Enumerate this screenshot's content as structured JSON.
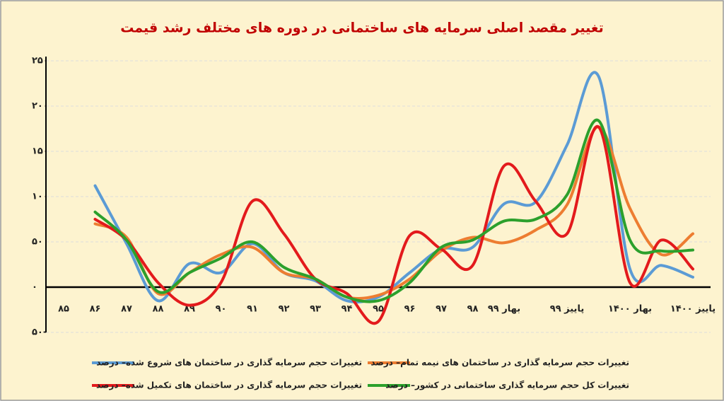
{
  "chart_data": {
    "type": "line",
    "title": "تغییر مقصد اصلی سرمایه های ساختمانی در دوره های مختلف رشد قیمت",
    "categories": [
      "۸۵",
      "۸۶",
      "۸۷",
      "۸۸",
      "۸۹",
      "۹۰",
      "۹۱",
      "۹۲",
      "۹۳",
      "۹۴",
      "۹۵",
      "۹۶",
      "۹۷",
      "۹۸",
      "بهار ۹۹",
      null,
      "پاییز ۹۹",
      null,
      "بهار ۱۴۰۰",
      null,
      "پاییز ۱۴۰۰"
    ],
    "series": [
      {
        "name": "تغییرات حجم سرمایه گذاری در ساختمان های شروع شده– درصد",
        "color": "#5b9bd5",
        "values": [
          null,
          112,
          48,
          -15,
          26,
          16,
          48,
          16,
          7,
          -15,
          -11,
          16,
          42,
          44,
          92,
          94,
          157,
          233,
          20,
          24,
          11
        ]
      },
      {
        "name": "تغییرات حجم سرمایه گذاری در ساختمان های نیمه تمام– درصد",
        "color": "#ed7d31",
        "values": [
          null,
          70,
          55,
          -7,
          16,
          36,
          44,
          16,
          9,
          -11,
          -9,
          9,
          40,
          55,
          49,
          63,
          91,
          177,
          87,
          36,
          59
        ]
      },
      {
        "name": "تغییرات حجم سرمایه گذاری در ساختمان های تکمیل شده– درصد",
        "color": "#e31a1c",
        "values": [
          null,
          75,
          52,
          5,
          -20,
          5,
          95,
          59,
          9,
          -7,
          -38,
          57,
          42,
          24,
          134,
          95,
          59,
          177,
          5,
          52,
          20
        ]
      },
      {
        "name": "تغییرات کل حجم سرمایه گذاری ساختمانی در کشور– درصد",
        "color": "#2ca02c",
        "values": [
          null,
          83,
          52,
          -5,
          16,
          32,
          50,
          22,
          9,
          -11,
          -15,
          5,
          44,
          52,
          73,
          75,
          102,
          184,
          52,
          40,
          41
        ]
      }
    ],
    "ylim": [
      -50,
      250
    ],
    "yticks": [
      {
        "value": -50,
        "label": "-۵۰"
      },
      {
        "value": 0,
        "label": "۰"
      },
      {
        "value": 50,
        "label": "۵۰"
      },
      {
        "value": 100,
        "label": "۱۰۰"
      },
      {
        "value": 150,
        "label": "۱۵۰"
      },
      {
        "value": 200,
        "label": "۲۰۰"
      },
      {
        "value": 250,
        "label": "۲۵۰"
      }
    ],
    "grid": true
  }
}
